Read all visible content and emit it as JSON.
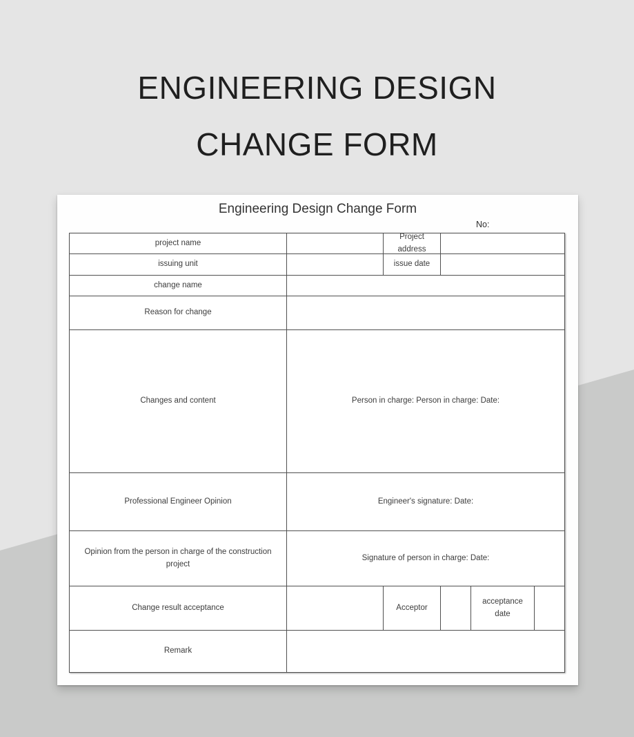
{
  "page": {
    "main_title_line1": "ENGINEERING DESIGN",
    "main_title_line2": "CHANGE FORM"
  },
  "form": {
    "title": "Engineering Design Change Form",
    "no_label": "No:",
    "labels": {
      "project_name": "project name",
      "project_address": "Project address",
      "issuing_unit": "issuing unit",
      "issue_date": "issue date",
      "change_name": "change name",
      "reason_for_change": "Reason for change",
      "changes_and_content": "Changes and content",
      "person_in_charge_sign": "Person in charge: Person in charge: Date:",
      "professional_engineer_opinion": "Professional Engineer Opinion",
      "engineer_signature": "Engineer's signature: Date:",
      "construction_opinion": "Opinion from the person in charge of the construction project",
      "signature_person_in_charge": "Signature of person in charge: Date:",
      "change_result_acceptance": "Change result acceptance",
      "acceptor": "Acceptor",
      "acceptance_date": "acceptance date",
      "remark": "Remark"
    }
  },
  "colors": {
    "background_light": "#e5e5e5",
    "background_dark": "#c9cac9",
    "card": "#fefefe",
    "table_border": "#4f4f4f",
    "title_text": "#1f1f1f",
    "label_text": "#3c3c3c"
  }
}
